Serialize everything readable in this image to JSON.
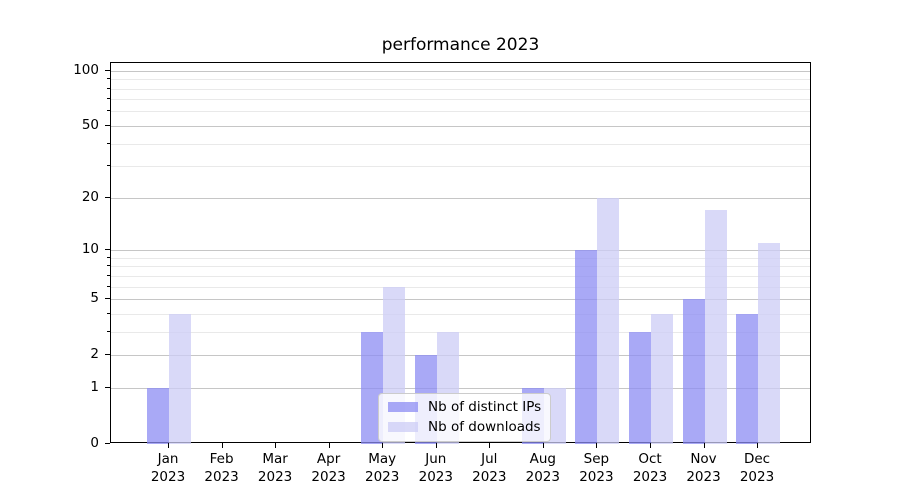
{
  "title": "performance 2023",
  "chart_data": {
    "type": "bar",
    "title": "performance 2023",
    "categories": [
      "Jan 2023",
      "Feb 2023",
      "Mar 2023",
      "Apr 2023",
      "May 2023",
      "Jun 2023",
      "Jul 2023",
      "Aug 2023",
      "Sep 2023",
      "Oct 2023",
      "Nov 2023",
      "Dec 2023"
    ],
    "series": [
      {
        "name": "Nb of distinct IPs",
        "color": "#8c8cf3",
        "alpha": 0.75,
        "values": [
          1,
          0,
          0,
          0,
          3,
          2,
          0,
          1,
          10,
          3,
          5,
          4
        ]
      },
      {
        "name": "Nb of downloads",
        "color": "#ccccf6",
        "alpha": 0.75,
        "values": [
          4,
          0,
          0,
          0,
          6,
          3,
          0,
          1,
          20,
          4,
          17,
          11
        ]
      }
    ],
    "xlabel": "",
    "ylabel": "",
    "yscale": "log1p",
    "ylim": [
      0,
      110
    ],
    "y_major_ticks": [
      0,
      1,
      2,
      5,
      10,
      20,
      50,
      100
    ],
    "y_minor_ticks": [
      3,
      4,
      6,
      7,
      8,
      9,
      30,
      40,
      60,
      70,
      80,
      90
    ],
    "grid": true,
    "legend_position": "lower center"
  },
  "colors": {
    "grid_major": "#c6c6c6",
    "grid_minor": "#e9e9e9",
    "spine": "#000000",
    "text": "#000000",
    "legend_border": "#cccccc",
    "legend_background": "rgba(255,255,255,0.8)"
  }
}
